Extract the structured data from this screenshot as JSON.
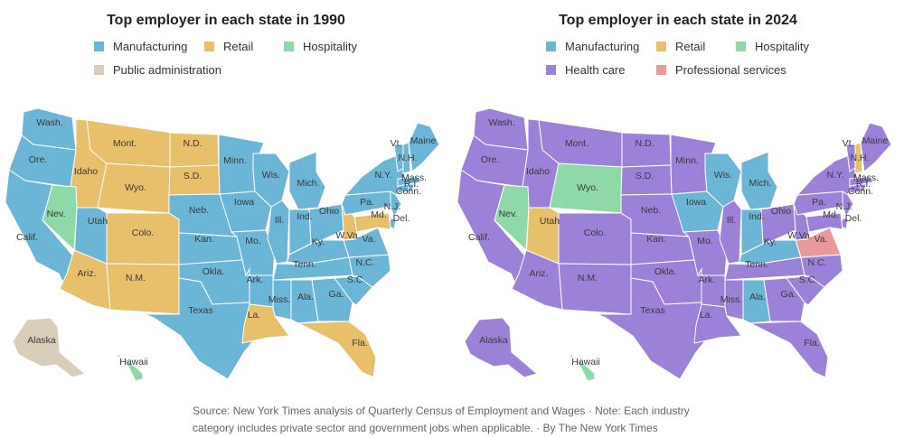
{
  "colors": {
    "manufacturing": "#6bb5d6",
    "retail": "#e8bf6a",
    "hospitality": "#8fd8a8",
    "public_administration": "#d8cdb9",
    "health_care": "#9b82d8",
    "professional_services": "#e9999a"
  },
  "map1990": {
    "title": "Top employer in each state in 1990",
    "legend": [
      {
        "key": "manufacturing",
        "label": "Manufacturing"
      },
      {
        "key": "retail",
        "label": "Retail"
      },
      {
        "key": "hospitality",
        "label": "Hospitality"
      },
      {
        "key": "public_administration",
        "label": "Public administration"
      }
    ]
  },
  "map2024": {
    "title": "Top employer in each state in 2024",
    "legend": [
      {
        "key": "manufacturing",
        "label": "Manufacturing"
      },
      {
        "key": "retail",
        "label": "Retail"
      },
      {
        "key": "hospitality",
        "label": "Hospitality"
      },
      {
        "key": "health_care",
        "label": "Health care"
      },
      {
        "key": "professional_services",
        "label": "Professional services"
      }
    ]
  },
  "states": [
    {
      "id": "wa",
      "label": "Wash.",
      "y1990": "manufacturing",
      "y2024": "health_care"
    },
    {
      "id": "or",
      "label": "Ore.",
      "y1990": "manufacturing",
      "y2024": "health_care"
    },
    {
      "id": "ca",
      "label": "Calif.",
      "y1990": "manufacturing",
      "y2024": "health_care"
    },
    {
      "id": "id",
      "label": "Idaho",
      "y1990": "retail",
      "y2024": "health_care"
    },
    {
      "id": "nv",
      "label": "Nev.",
      "y1990": "hospitality",
      "y2024": "hospitality"
    },
    {
      "id": "mt",
      "label": "Mont.",
      "y1990": "retail",
      "y2024": "health_care"
    },
    {
      "id": "wy",
      "label": "Wyo.",
      "y1990": "retail",
      "y2024": "hospitality"
    },
    {
      "id": "ut",
      "label": "Utah",
      "y1990": "manufacturing",
      "y2024": "retail"
    },
    {
      "id": "co",
      "label": "Colo.",
      "y1990": "retail",
      "y2024": "health_care"
    },
    {
      "id": "az",
      "label": "Ariz.",
      "y1990": "retail",
      "y2024": "health_care"
    },
    {
      "id": "nm",
      "label": "N.M.",
      "y1990": "retail",
      "y2024": "health_care"
    },
    {
      "id": "nd",
      "label": "N.D.",
      "y1990": "retail",
      "y2024": "health_care"
    },
    {
      "id": "sd",
      "label": "S.D.",
      "y1990": "retail",
      "y2024": "health_care"
    },
    {
      "id": "ne",
      "label": "Neb.",
      "y1990": "manufacturing",
      "y2024": "health_care"
    },
    {
      "id": "ks",
      "label": "Kan.",
      "y1990": "manufacturing",
      "y2024": "health_care"
    },
    {
      "id": "ok",
      "label": "Okla.",
      "y1990": "manufacturing",
      "y2024": "health_care"
    },
    {
      "id": "tx",
      "label": "Texas",
      "y1990": "manufacturing",
      "y2024": "health_care"
    },
    {
      "id": "mn",
      "label": "Minn.",
      "y1990": "manufacturing",
      "y2024": "health_care"
    },
    {
      "id": "ia",
      "label": "Iowa",
      "y1990": "manufacturing",
      "y2024": "manufacturing"
    },
    {
      "id": "mo",
      "label": "Mo.",
      "y1990": "manufacturing",
      "y2024": "health_care"
    },
    {
      "id": "ar",
      "label": "Ark.",
      "y1990": "manufacturing",
      "y2024": "health_care"
    },
    {
      "id": "la",
      "label": "La.",
      "y1990": "retail",
      "y2024": "health_care"
    },
    {
      "id": "wi",
      "label": "Wis.",
      "y1990": "manufacturing",
      "y2024": "manufacturing"
    },
    {
      "id": "il",
      "label": "Ill.",
      "y1990": "manufacturing",
      "y2024": "health_care"
    },
    {
      "id": "mi",
      "label": "Mich.",
      "y1990": "manufacturing",
      "y2024": "manufacturing"
    },
    {
      "id": "in",
      "label": "Ind.",
      "y1990": "manufacturing",
      "y2024": "manufacturing"
    },
    {
      "id": "oh",
      "label": "Ohio",
      "y1990": "manufacturing",
      "y2024": "health_care"
    },
    {
      "id": "ky",
      "label": "Ky.",
      "y1990": "manufacturing",
      "y2024": "manufacturing"
    },
    {
      "id": "tn",
      "label": "Tenn.",
      "y1990": "manufacturing",
      "y2024": "health_care"
    },
    {
      "id": "ms",
      "label": "Miss.",
      "y1990": "manufacturing",
      "y2024": "health_care"
    },
    {
      "id": "al",
      "label": "Ala.",
      "y1990": "manufacturing",
      "y2024": "manufacturing"
    },
    {
      "id": "ga",
      "label": "Ga.",
      "y1990": "manufacturing",
      "y2024": "health_care"
    },
    {
      "id": "fl",
      "label": "Fla.",
      "y1990": "retail",
      "y2024": "health_care"
    },
    {
      "id": "sc",
      "label": "S.C.",
      "y1990": "manufacturing",
      "y2024": "health_care"
    },
    {
      "id": "nc",
      "label": "N.C.",
      "y1990": "manufacturing",
      "y2024": "health_care"
    },
    {
      "id": "va",
      "label": "Va.",
      "y1990": "manufacturing",
      "y2024": "professional_services"
    },
    {
      "id": "wv",
      "label": "W.Va.",
      "y1990": "retail",
      "y2024": "health_care"
    },
    {
      "id": "pa",
      "label": "Pa.",
      "y1990": "manufacturing",
      "y2024": "health_care"
    },
    {
      "id": "ny",
      "label": "N.Y.",
      "y1990": "manufacturing",
      "y2024": "health_care"
    },
    {
      "id": "nj",
      "label": "N.J.",
      "y1990": "manufacturing",
      "y2024": "health_care"
    },
    {
      "id": "de",
      "label": "Del.",
      "y1990": "manufacturing",
      "y2024": "health_care"
    },
    {
      "id": "md",
      "label": "Md.",
      "y1990": "retail",
      "y2024": "health_care"
    },
    {
      "id": "ct",
      "label": "Conn.",
      "y1990": "manufacturing",
      "y2024": "health_care"
    },
    {
      "id": "ri",
      "label": "R.I.",
      "y1990": "manufacturing",
      "y2024": "health_care"
    },
    {
      "id": "ma",
      "label": "Mass.",
      "y1990": "manufacturing",
      "y2024": "health_care"
    },
    {
      "id": "vt",
      "label": "Vt.",
      "y1990": "manufacturing",
      "y2024": "health_care"
    },
    {
      "id": "nh",
      "label": "N.H.",
      "y1990": "manufacturing",
      "y2024": "retail"
    },
    {
      "id": "me",
      "label": "Maine",
      "y1990": "manufacturing",
      "y2024": "health_care"
    },
    {
      "id": "ak",
      "label": "Alaska",
      "y1990": "public_administration",
      "y2024": "health_care"
    },
    {
      "id": "hi",
      "label": "Hawaii",
      "y1990": "hospitality",
      "y2024": "hospitality"
    }
  ],
  "footer": {
    "line1": "Source: New York Times analysis of Quarterly Census of Employment and Wages  ·  Note: Each industry",
    "line2": "category includes private sector and government jobs when applicable.  ·  By The New York Times"
  }
}
